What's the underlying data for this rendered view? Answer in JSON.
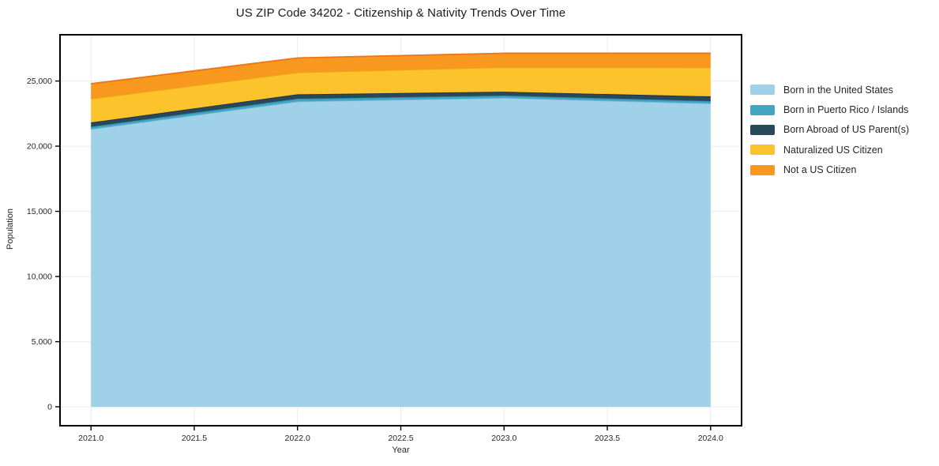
{
  "chart_data": {
    "type": "area",
    "stacked": true,
    "title": "US ZIP Code 34202 - Citizenship & Nativity Trends Over Time",
    "xlabel": "Year",
    "ylabel": "Population",
    "x": [
      2021,
      2022,
      2023,
      2024
    ],
    "series": [
      {
        "name": "Born in the United States",
        "color": "#9fd2e9",
        "edge": "#7db9d6",
        "values": [
          21310,
          23430,
          23700,
          23280
        ]
      },
      {
        "name": "Born in Puerto Rico / Islands",
        "color": "#41a6c4",
        "edge": "#2e8fae",
        "values": [
          180,
          210,
          180,
          180
        ]
      },
      {
        "name": "Born Abroad of US Parent(s)",
        "color": "#29485a",
        "edge": "#1d3542",
        "values": [
          330,
          340,
          300,
          360
        ]
      },
      {
        "name": "Naturalized US Citizen",
        "color": "#fdc32d",
        "edge": "#eba712",
        "values": [
          1820,
          1680,
          1880,
          2220
        ]
      },
      {
        "name": "Not a US Citizen",
        "color": "#f8981f",
        "edge": "#e8761a",
        "values": [
          1150,
          1110,
          1070,
          1090
        ]
      }
    ],
    "stack_totals": [
      24790,
      26770,
      27130,
      27130
    ],
    "xlim": [
      2020.85,
      2024.15
    ],
    "ylim": [
      -1450,
      28550
    ],
    "x_ticks": [
      2021.0,
      2021.5,
      2022.0,
      2022.5,
      2023.0,
      2023.5,
      2024.0
    ],
    "x_tick_labels": [
      "2021.0",
      "2021.5",
      "2022.0",
      "2022.5",
      "2023.0",
      "2023.5",
      "2024.0"
    ],
    "y_ticks": [
      0,
      5000,
      10000,
      15000,
      20000,
      25000
    ],
    "y_tick_labels": [
      "0",
      "5,000",
      "10,000",
      "15,000",
      "20,000",
      "25,000"
    ],
    "grid": true,
    "grid_color": "#ebebeb",
    "spine_color": "#000000",
    "legend_position": "right"
  }
}
